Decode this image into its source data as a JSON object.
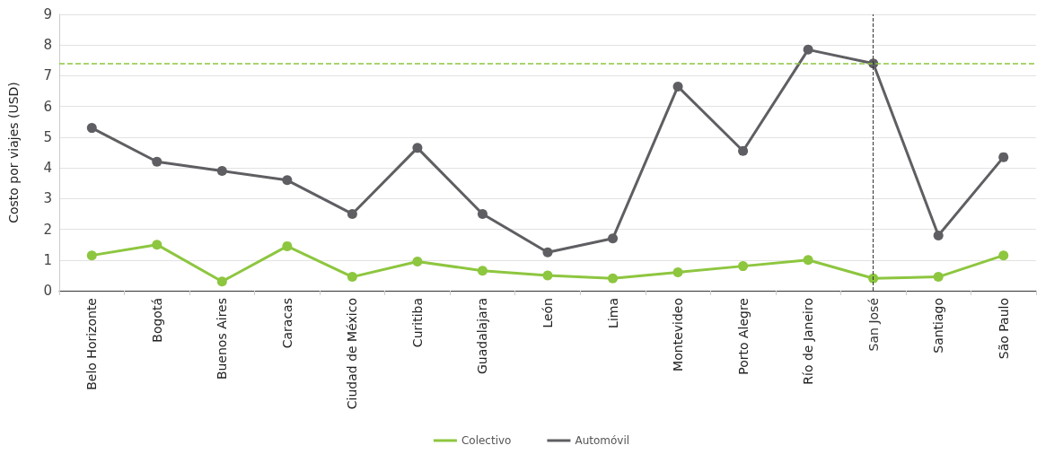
{
  "chart_data": {
    "type": "line",
    "ylabel": "Costo por viajes (USD)",
    "categories": [
      "Belo Horizonte",
      "Bogotá",
      "Buenos Aires",
      "Caracas",
      "Ciudad de México",
      "Curitiba",
      "Guadalajara",
      "León",
      "Lima",
      "Montevideo",
      "Porto Alegre",
      "Río de Janeiro",
      "San José",
      "Santiago",
      "São Paulo"
    ],
    "series": [
      {
        "name": "Colectivo",
        "color": "#8dc63f",
        "values": [
          1.15,
          1.5,
          0.3,
          1.45,
          0.45,
          0.95,
          0.65,
          0.5,
          0.4,
          0.6,
          0.8,
          1.0,
          0.4,
          0.45,
          1.15
        ]
      },
      {
        "name": "Automóvil",
        "color": "#5f5f63",
        "values": [
          5.3,
          4.2,
          3.9,
          3.6,
          2.5,
          4.65,
          2.5,
          1.25,
          1.7,
          6.65,
          4.55,
          7.85,
          7.4,
          1.8,
          4.35
        ]
      }
    ],
    "ylim": [
      0,
      9
    ],
    "yticks": [
      0,
      1,
      2,
      3,
      4,
      5,
      6,
      7,
      8,
      9
    ],
    "ref_lines": [
      {
        "axis": "y",
        "value": 7.4,
        "label": null,
        "color": "#8dc63f",
        "line_style": "dashed"
      },
      {
        "axis": "x",
        "value": "San José",
        "label": null,
        "color": "#333333",
        "line_style": "dashed"
      }
    ],
    "grid": "y",
    "legend": "bottom",
    "marker": "circle",
    "line_style": "solid"
  }
}
